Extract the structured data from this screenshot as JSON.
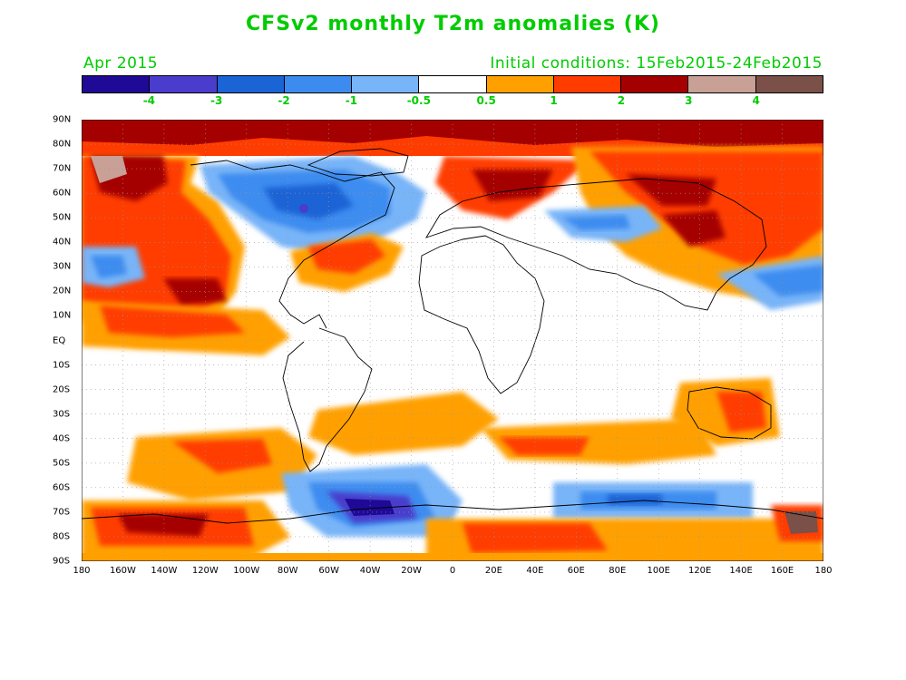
{
  "title": "CFSv2 monthly T2m anomalies (K)",
  "period": "Apr 2015",
  "initial_conditions": "Initial conditions: 15Feb2015-24Feb2015",
  "colorbar": {
    "colors": [
      "#1e0a96",
      "#4a3ccc",
      "#1a64d6",
      "#3c8cf0",
      "#78b4f8",
      "#ffffff",
      "#ffa000",
      "#ff3c00",
      "#a50000",
      "#c8a096",
      "#7a5048"
    ],
    "labels": [
      "-4",
      "-3",
      "-2",
      "-1",
      "-0.5",
      "0.5",
      "1",
      "2",
      "3",
      "4"
    ]
  },
  "lat_labels": [
    "90N",
    "80N",
    "70N",
    "60N",
    "50N",
    "40N",
    "30N",
    "20N",
    "10N",
    "EQ",
    "10S",
    "20S",
    "30S",
    "40S",
    "50S",
    "60S",
    "70S",
    "80S",
    "90S"
  ],
  "lon_labels": [
    "180",
    "160W",
    "140W",
    "120W",
    "100W",
    "80W",
    "60W",
    "40W",
    "20W",
    "0",
    "20E",
    "40E",
    "60E",
    "80E",
    "100E",
    "120E",
    "140E",
    "160E",
    "180"
  ],
  "colors": {
    "text_accent": "#00cc00"
  }
}
